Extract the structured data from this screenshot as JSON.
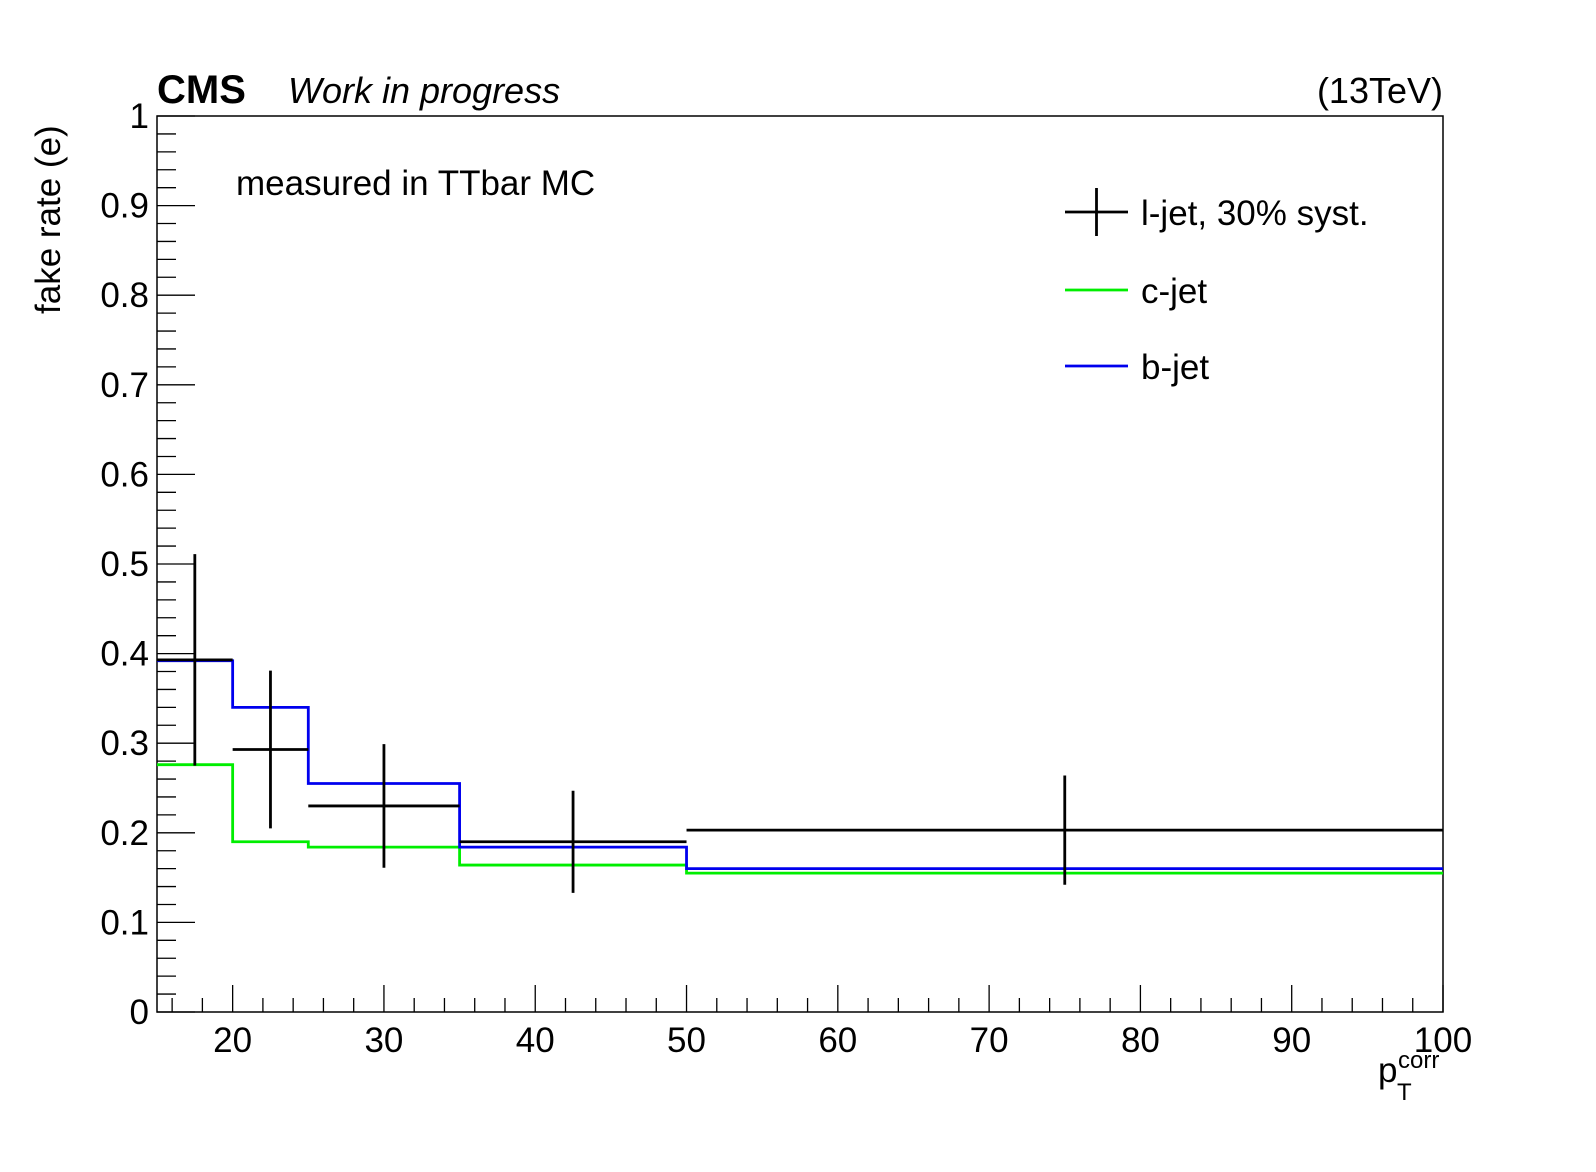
{
  "header": {
    "experiment": "CMS",
    "status": "Work in progress",
    "energy": "(13TeV)"
  },
  "annotation": "measured in TTbar MC",
  "chart_data": {
    "type": "histogram",
    "xlabel": "p",
    "xlabel_sub": "T",
    "xlabel_sup": "corr",
    "ylabel": "fake rate (e)",
    "xlim": [
      15,
      100
    ],
    "ylim": [
      0,
      1
    ],
    "x_major_ticks": [
      20,
      30,
      40,
      50,
      60,
      70,
      80,
      90,
      100
    ],
    "y_major_ticks": [
      {
        "value": 0,
        "label": "0"
      },
      {
        "value": 0.1,
        "label": "0.1"
      },
      {
        "value": 0.2,
        "label": "0.2"
      },
      {
        "value": 0.3,
        "label": "0.3"
      },
      {
        "value": 0.4,
        "label": "0.4"
      },
      {
        "value": 0.5,
        "label": "0.5"
      },
      {
        "value": 0.6,
        "label": "0.6"
      },
      {
        "value": 0.7,
        "label": "0.7"
      },
      {
        "value": 0.8,
        "label": "0.8"
      },
      {
        "value": 0.9,
        "label": "0.9"
      },
      {
        "value": 1,
        "label": "1"
      }
    ],
    "bin_edges": [
      15,
      20,
      25,
      35,
      50,
      100
    ],
    "legend_position": "top-right",
    "series": [
      {
        "name": "l-jet, 30% syst.",
        "style": "error-bars",
        "color": "#000000",
        "values": [
          0.393,
          0.293,
          0.23,
          0.19,
          0.203
        ],
        "errors_low": [
          0.118,
          0.088,
          0.069,
          0.057,
          0.061
        ],
        "errors_high": [
          0.118,
          0.088,
          0.069,
          0.057,
          0.061
        ]
      },
      {
        "name": "c-jet",
        "style": "step",
        "color": "#00ee00",
        "values": [
          0.276,
          0.19,
          0.184,
          0.164,
          0.155
        ]
      },
      {
        "name": "b-jet",
        "style": "step",
        "color": "#0000ee",
        "values": [
          0.392,
          0.34,
          0.255,
          0.184,
          0.16
        ]
      }
    ]
  }
}
